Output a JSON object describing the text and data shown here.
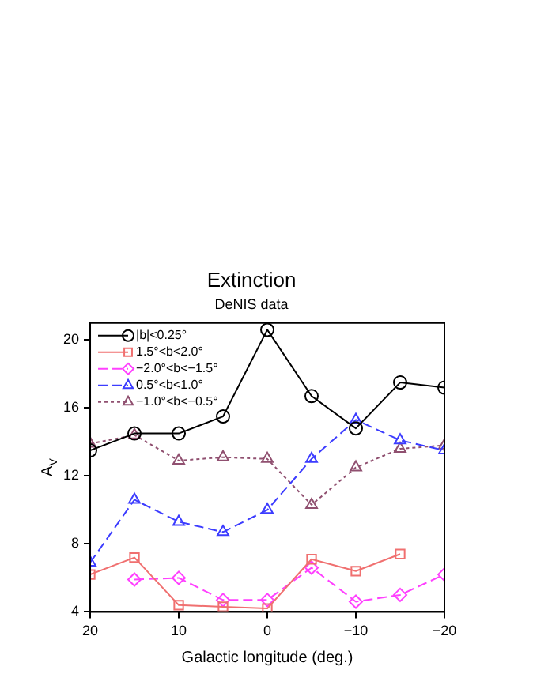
{
  "chart_data": {
    "type": "line",
    "title": "Extinction",
    "subtitle": "DeNIS data",
    "xlabel": "Galactic longitude (deg.)",
    "ylabel": "A$_{V}$",
    "x": [
      20,
      15,
      10,
      5,
      0,
      -5,
      -10,
      -15,
      -20
    ],
    "xlim": [
      20,
      -20
    ],
    "xticks": [
      20,
      10,
      0,
      {
        "value": -10,
        "label": "−10"
      },
      {
        "value": -20,
        "label": "−20"
      }
    ],
    "ylim": [
      4,
      21
    ],
    "yticks": [
      4,
      8,
      12,
      16,
      20
    ],
    "legend": "top left",
    "series": [
      {
        "name": "|b|<0.25°",
        "color": "#000000",
        "marker": "circle",
        "line_style": "solid",
        "values": [
          13.5,
          14.5,
          14.5,
          15.5,
          20.6,
          16.7,
          14.8,
          17.5,
          17.2
        ]
      },
      {
        "name": "1.5°<b<2.0°",
        "color": "#f07070",
        "marker": "square",
        "line_style": "solid",
        "values": [
          6.2,
          7.2,
          4.4,
          4.3,
          4.2,
          7.1,
          6.4,
          7.4,
          null
        ]
      },
      {
        "name": "−2.0°<b<−1.5°",
        "color": "#ff40ff",
        "marker": "diamond",
        "line_style": "dashed",
        "values": [
          null,
          5.9,
          6.0,
          4.7,
          4.7,
          6.6,
          4.6,
          5.0,
          6.2
        ]
      },
      {
        "name": "0.5°<b<1.0°",
        "color": "#3c3cff",
        "marker": "triangle",
        "line_style": "dashed",
        "values": [
          6.9,
          10.6,
          9.3,
          8.7,
          10.0,
          13.0,
          15.3,
          14.1,
          13.5
        ]
      },
      {
        "name": "−1.0°<b<−0.5°",
        "color": "#905070",
        "marker": "triangle",
        "line_style": "dotted",
        "values": [
          13.9,
          14.4,
          12.9,
          13.1,
          13.0,
          10.3,
          12.5,
          13.6,
          13.8
        ]
      }
    ]
  }
}
